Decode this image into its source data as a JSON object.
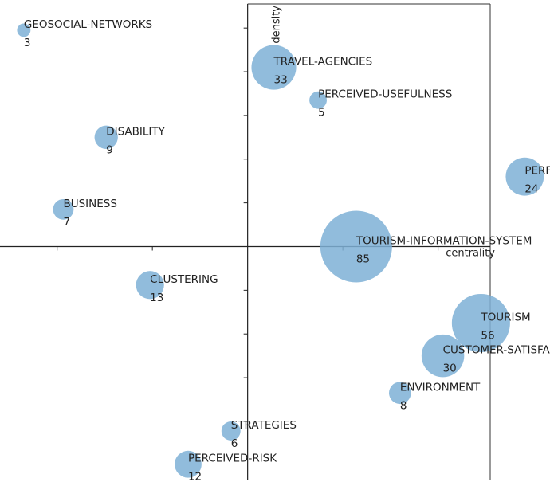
{
  "chart_data": {
    "type": "scatter",
    "subtype": "strategic-diagram-bubble",
    "title": "",
    "xlabel": "centrality",
    "ylabel": "density",
    "xlim": [
      -5.2,
      6.35
    ],
    "ylim": [
      -5.35,
      5.55
    ],
    "grid": false,
    "legend": "none",
    "bubble_color": "#7EB0D6",
    "points": [
      {
        "label": "GEOSOCIAL-NETWORKS",
        "count": 3,
        "x": -4.7,
        "y": 4.95
      },
      {
        "label": "TRAVEL-AGENCIES",
        "count": 33,
        "x": 0.55,
        "y": 4.1
      },
      {
        "label": "PERCEIVED-USEFULNESS",
        "count": 5,
        "x": 1.48,
        "y": 3.35
      },
      {
        "label": "DISABILITY",
        "count": 9,
        "x": -2.97,
        "y": 2.5
      },
      {
        "label": "PERFORMANCE",
        "count": 24,
        "x": 5.82,
        "y": 1.6
      },
      {
        "label": "BUSINESS",
        "count": 7,
        "x": -3.87,
        "y": 0.85
      },
      {
        "label": "TOURISM-INFORMATION-SYSTEM",
        "count": 85,
        "x": 2.28,
        "y": 0.0
      },
      {
        "label": "CLUSTERING",
        "count": 13,
        "x": -2.05,
        "y": -0.88
      },
      {
        "label": "TOURISM",
        "count": 56,
        "x": 4.9,
        "y": -1.75
      },
      {
        "label": "CUSTOMER-SATISFACTION",
        "count": 30,
        "x": 4.1,
        "y": -2.5
      },
      {
        "label": "ENVIRONMENT",
        "count": 8,
        "x": 3.2,
        "y": -3.35
      },
      {
        "label": "STRATEGIES",
        "count": 6,
        "x": -0.35,
        "y": -4.22
      },
      {
        "label": "PERCEIVED-RISK",
        "count": 12,
        "x": -1.25,
        "y": -4.98
      }
    ]
  }
}
